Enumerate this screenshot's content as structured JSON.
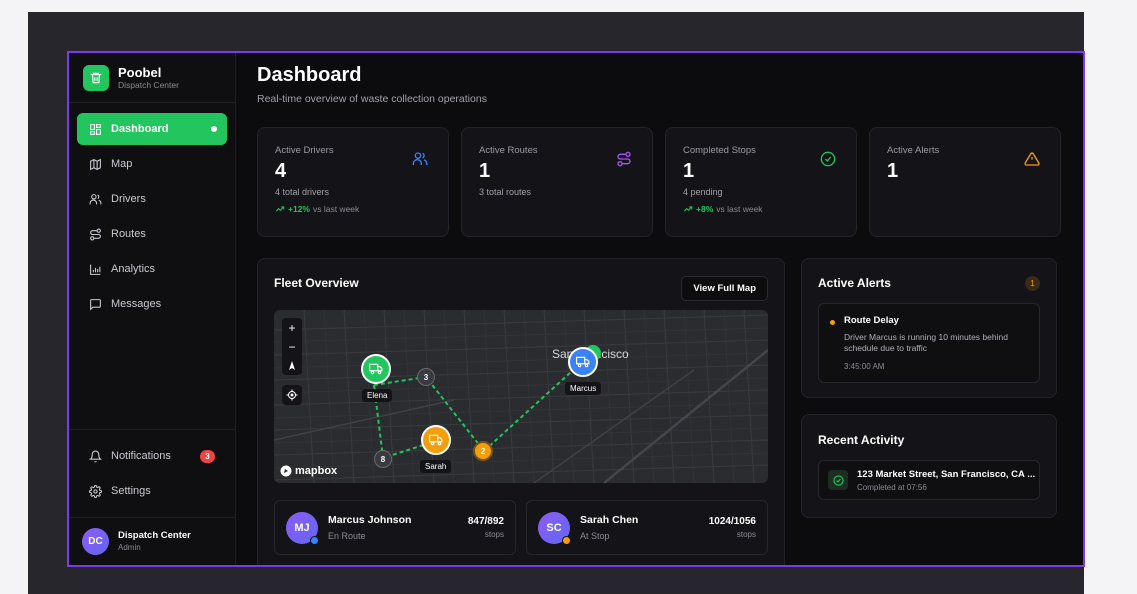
{
  "brand": {
    "name": "Poobel",
    "subtitle": "Dispatch Center"
  },
  "nav": [
    {
      "label": "Dashboard",
      "icon": "dashboard-icon",
      "active": true
    },
    {
      "label": "Map",
      "icon": "map-icon"
    },
    {
      "label": "Drivers",
      "icon": "users-icon"
    },
    {
      "label": "Routes",
      "icon": "route-icon"
    },
    {
      "label": "Analytics",
      "icon": "chart-icon"
    },
    {
      "label": "Messages",
      "icon": "message-icon"
    }
  ],
  "nav_bottom": [
    {
      "label": "Notifications",
      "icon": "bell-icon",
      "badge": "3"
    },
    {
      "label": "Settings",
      "icon": "gear-icon"
    }
  ],
  "user": {
    "initials": "DC",
    "name": "Dispatch Center",
    "role": "Admin"
  },
  "page": {
    "title": "Dashboard",
    "subtitle": "Real-time overview of waste collection operations"
  },
  "stats": [
    {
      "label": "Active Drivers",
      "value": "4",
      "sub": "4 total drivers",
      "trend": "+12%",
      "trend_note": "vs last week",
      "icon": "users-icon",
      "color": "#3b82f6"
    },
    {
      "label": "Active Routes",
      "value": "1",
      "sub": "3 total routes",
      "icon": "route-icon",
      "color": "#a855f7"
    },
    {
      "label": "Completed Stops",
      "value": "1",
      "sub": "4 pending",
      "trend": "+8%",
      "trend_note": "vs last week",
      "icon": "check-circle-icon",
      "color": "#22c55e"
    },
    {
      "label": "Active Alerts",
      "value": "1",
      "icon": "warning-icon",
      "color": "#f59e0b"
    }
  ],
  "fleet": {
    "title": "Fleet Overview",
    "view_map_label": "View Full Map",
    "map_labels": {
      "sf": "San Francisco",
      "elena": "Elena",
      "marcus": "Marcus",
      "sarah": "Sarah",
      "stop3": "3",
      "stop2": "2",
      "stop8": "8",
      "attribution": "mapbox",
      "zoom_in": "+",
      "zoom_out": "−"
    },
    "drivers": [
      {
        "initials": "MJ",
        "name": "Marcus Johnson",
        "status": "En Route",
        "stops": "847/892",
        "stops_label": "stops",
        "status_color": "#3b82f6"
      },
      {
        "initials": "SC",
        "name": "Sarah Chen",
        "status": "At Stop",
        "stops": "1024/1056",
        "stops_label": "stops",
        "status_color": "#f59e0b"
      }
    ]
  },
  "alerts": {
    "title": "Active Alerts",
    "count": "1",
    "items": [
      {
        "title": "Route Delay",
        "message": "Driver Marcus is running 10 minutes behind schedule due to traffic",
        "time": "3:45:00 AM"
      }
    ]
  },
  "activity": {
    "title": "Recent Activity",
    "items": [
      {
        "title": "123 Market Street, San Francisco, CA ...",
        "time": "Completed at 07:56"
      }
    ]
  }
}
